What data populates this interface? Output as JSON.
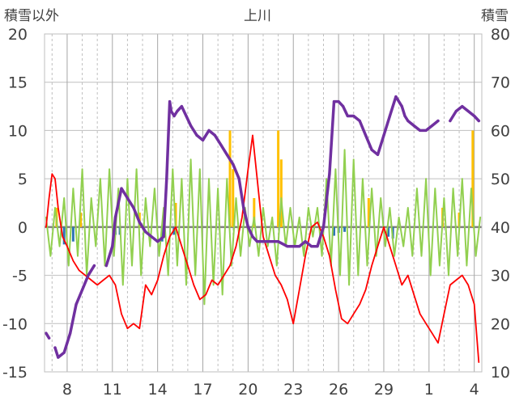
{
  "chart_data": {
    "type": "line",
    "title": "上川",
    "ylabel_left": "積雪以外",
    "ylabel_right": "積雪",
    "ylim_left": [
      -15,
      20
    ],
    "ylim_right": [
      10,
      80
    ],
    "y_ticks_left": [
      "20",
      "15",
      "10",
      "5",
      "0",
      "-5",
      "-10",
      "-15"
    ],
    "y_ticks_right": [
      "80",
      "70",
      "60",
      "50",
      "40",
      "30",
      "20",
      "10"
    ],
    "x_tick_labels": [
      "8",
      "11",
      "14",
      "17",
      "20",
      "23",
      "26",
      "29",
      "1",
      "4"
    ],
    "x_range_days": [
      6.5,
      35.5
    ],
    "grid": true,
    "series": [
      {
        "key": "snow_depth",
        "axis": "right",
        "style": "line",
        "color": "#7030a0",
        "x": [
          6.6,
          6.8,
          7.0,
          7.2,
          7.4,
          7.8,
          8.2,
          8.6,
          9.0,
          9.4,
          9.8,
          10.2,
          10.6,
          11.0,
          11.2,
          11.6,
          12.0,
          12.4,
          12.8,
          13.2,
          13.6,
          14.0,
          14.4,
          14.6,
          14.8,
          14.9,
          15.1,
          15.3,
          15.6,
          15.9,
          16.2,
          16.6,
          17.0,
          17.4,
          17.8,
          18.2,
          18.6,
          19.0,
          19.4,
          19.7,
          20.0,
          20.3,
          20.6,
          21.0,
          21.4,
          22.0,
          22.6,
          23.0,
          23.4,
          23.8,
          24.2,
          24.6,
          25.0,
          25.4,
          25.7,
          26.0,
          26.3,
          26.6,
          27.0,
          27.4,
          27.8,
          28.2,
          28.6,
          29.0,
          29.4,
          29.8,
          30.2,
          30.4,
          30.6,
          31.0,
          31.4,
          31.8,
          32.2,
          32.6,
          33.0,
          33.4,
          33.8,
          34.2,
          34.6,
          35.0,
          35.3
        ],
        "y": [
          18,
          17,
          null,
          15,
          13,
          14,
          18,
          24,
          27,
          30,
          32,
          null,
          32,
          36,
          42,
          48,
          46,
          44,
          41,
          39,
          38,
          37,
          38,
          50,
          66,
          64,
          63,
          64,
          65,
          63,
          61,
          59,
          58,
          60,
          59,
          57,
          55,
          53,
          50,
          44,
          40,
          38,
          37,
          37,
          37,
          37,
          36,
          36,
          36,
          37,
          36,
          36,
          40,
          51,
          66,
          66,
          65,
          63,
          63,
          62,
          59,
          56,
          55,
          59,
          63,
          67,
          65,
          63,
          62,
          61,
          60,
          60,
          61,
          62,
          null,
          62,
          64,
          65,
          64,
          63,
          62
        ]
      },
      {
        "key": "temperature",
        "axis": "left",
        "style": "line",
        "color": "#ff0000",
        "x": [
          6.6,
          6.8,
          7.0,
          7.2,
          7.4,
          7.7,
          8.0,
          8.4,
          8.8,
          9.2,
          9.6,
          10.0,
          10.4,
          10.8,
          11.2,
          11.6,
          12.0,
          12.4,
          12.8,
          13.2,
          13.6,
          14.0,
          14.4,
          14.8,
          15.2,
          15.6,
          16.0,
          16.4,
          16.8,
          17.2,
          17.6,
          18.0,
          18.4,
          18.8,
          19.2,
          19.6,
          20.0,
          20.3,
          20.6,
          21.0,
          21.4,
          21.8,
          22.2,
          22.6,
          23.0,
          23.4,
          23.8,
          24.2,
          24.6,
          25.0,
          25.4,
          25.8,
          26.2,
          26.6,
          27.0,
          27.4,
          27.8,
          28.2,
          28.6,
          29.0,
          29.4,
          29.8,
          30.2,
          30.6,
          31.0,
          31.4,
          31.8,
          32.2,
          32.6,
          33.0,
          33.4,
          33.8,
          34.2,
          34.6,
          35.0,
          35.3
        ],
        "y": [
          0,
          3,
          5.5,
          5,
          2,
          -1,
          -2,
          -3.5,
          -4.5,
          -5,
          -5.5,
          -6,
          -5.5,
          -5,
          -6,
          -9,
          -10.5,
          -10,
          -10.5,
          -6,
          -7,
          -5.5,
          -3,
          -1,
          0,
          -2,
          -4,
          -6,
          -7.5,
          -7,
          -5.5,
          -6,
          -5,
          -4,
          -2,
          1,
          6,
          9.5,
          5,
          -1,
          -3,
          -5,
          -6,
          -7.5,
          -10,
          -6.5,
          -3,
          0,
          0.5,
          -1,
          -3,
          -6.5,
          -9.5,
          -10,
          -9,
          -8,
          -6.5,
          -4,
          -2,
          0,
          -2,
          -4,
          -6,
          -5,
          -7,
          -9,
          -10,
          -11,
          -12,
          -9,
          -6,
          -5.5,
          -5,
          -6,
          -8,
          -14
        ]
      },
      {
        "key": "wind",
        "axis": "left",
        "style": "spiky",
        "color": "#92d050",
        "x": [
          6.6,
          6.9,
          7.2,
          7.5,
          7.8,
          8.1,
          8.4,
          8.7,
          9.0,
          9.3,
          9.6,
          9.9,
          10.2,
          10.5,
          10.8,
          11.1,
          11.4,
          11.7,
          12.0,
          12.3,
          12.6,
          12.9,
          13.2,
          13.5,
          13.8,
          14.1,
          14.4,
          14.7,
          15.0,
          15.3,
          15.6,
          15.9,
          16.2,
          16.5,
          16.8,
          17.1,
          17.4,
          17.7,
          18.0,
          18.3,
          18.6,
          18.9,
          19.2,
          19.5,
          19.8,
          20.1,
          20.4,
          20.7,
          21.0,
          21.3,
          21.6,
          21.9,
          22.2,
          22.5,
          22.8,
          23.1,
          23.4,
          23.7,
          24.0,
          24.3,
          24.6,
          24.9,
          25.2,
          25.5,
          25.8,
          26.1,
          26.4,
          26.7,
          27.0,
          27.3,
          27.6,
          27.9,
          28.2,
          28.5,
          28.8,
          29.1,
          29.4,
          29.7,
          30.0,
          30.3,
          30.6,
          30.9,
          31.2,
          31.5,
          31.8,
          32.1,
          32.4,
          32.7,
          33.0,
          33.3,
          33.6,
          33.9,
          34.2,
          34.5,
          34.8,
          35.1,
          35.4
        ],
        "y": [
          1,
          -3,
          2,
          -2,
          3,
          -4,
          4,
          -3,
          6,
          -5,
          3,
          -2,
          5,
          -4,
          6,
          -3,
          4,
          -6,
          5,
          -4,
          6,
          -5,
          3,
          -2,
          4,
          -3,
          2,
          -5,
          6,
          -4,
          5,
          -6,
          7,
          -5,
          6,
          -8,
          5,
          -6,
          4,
          -7,
          5,
          -4,
          3,
          -3,
          2,
          -2,
          1,
          -3,
          2,
          -2,
          1,
          -4,
          3,
          -2,
          2,
          -2,
          1,
          -3,
          2,
          -1,
          2,
          -3,
          5,
          -4,
          6,
          -5,
          8,
          -6,
          7,
          -5,
          5,
          -4,
          4,
          -3,
          3,
          -2,
          2,
          -3,
          1,
          -2,
          2,
          -3,
          4,
          -3,
          5,
          -5,
          4,
          -4,
          3,
          -5,
          4,
          -3,
          5,
          -4,
          4,
          -3,
          1
        ]
      },
      {
        "key": "precipitation",
        "axis": "left",
        "style": "bar",
        "color": "#ffc000",
        "x": [
          7.3,
          8.9,
          12.8,
          15.2,
          18.8,
          19.0,
          20.4,
          22.0,
          22.2,
          28.0,
          32.9,
          34.0,
          34.9
        ],
        "y": [
          2,
          1.5,
          1.5,
          2.5,
          10,
          6,
          3,
          10,
          7,
          3,
          2,
          1.5,
          10
        ]
      },
      {
        "key": "sunshine",
        "axis": "left",
        "style": "bar",
        "color": "#2e75b6",
        "x": [
          7.8,
          8.4,
          11.2,
          11.5,
          14.3,
          15.1,
          25.7,
          26.0,
          26.4,
          29.3,
          29.6
        ],
        "y": [
          -1.8,
          -1.5,
          -0.8,
          -0.8,
          -1.5,
          -0.8,
          -0.9,
          -0.6,
          -0.5,
          -1,
          -1.2
        ]
      }
    ]
  }
}
